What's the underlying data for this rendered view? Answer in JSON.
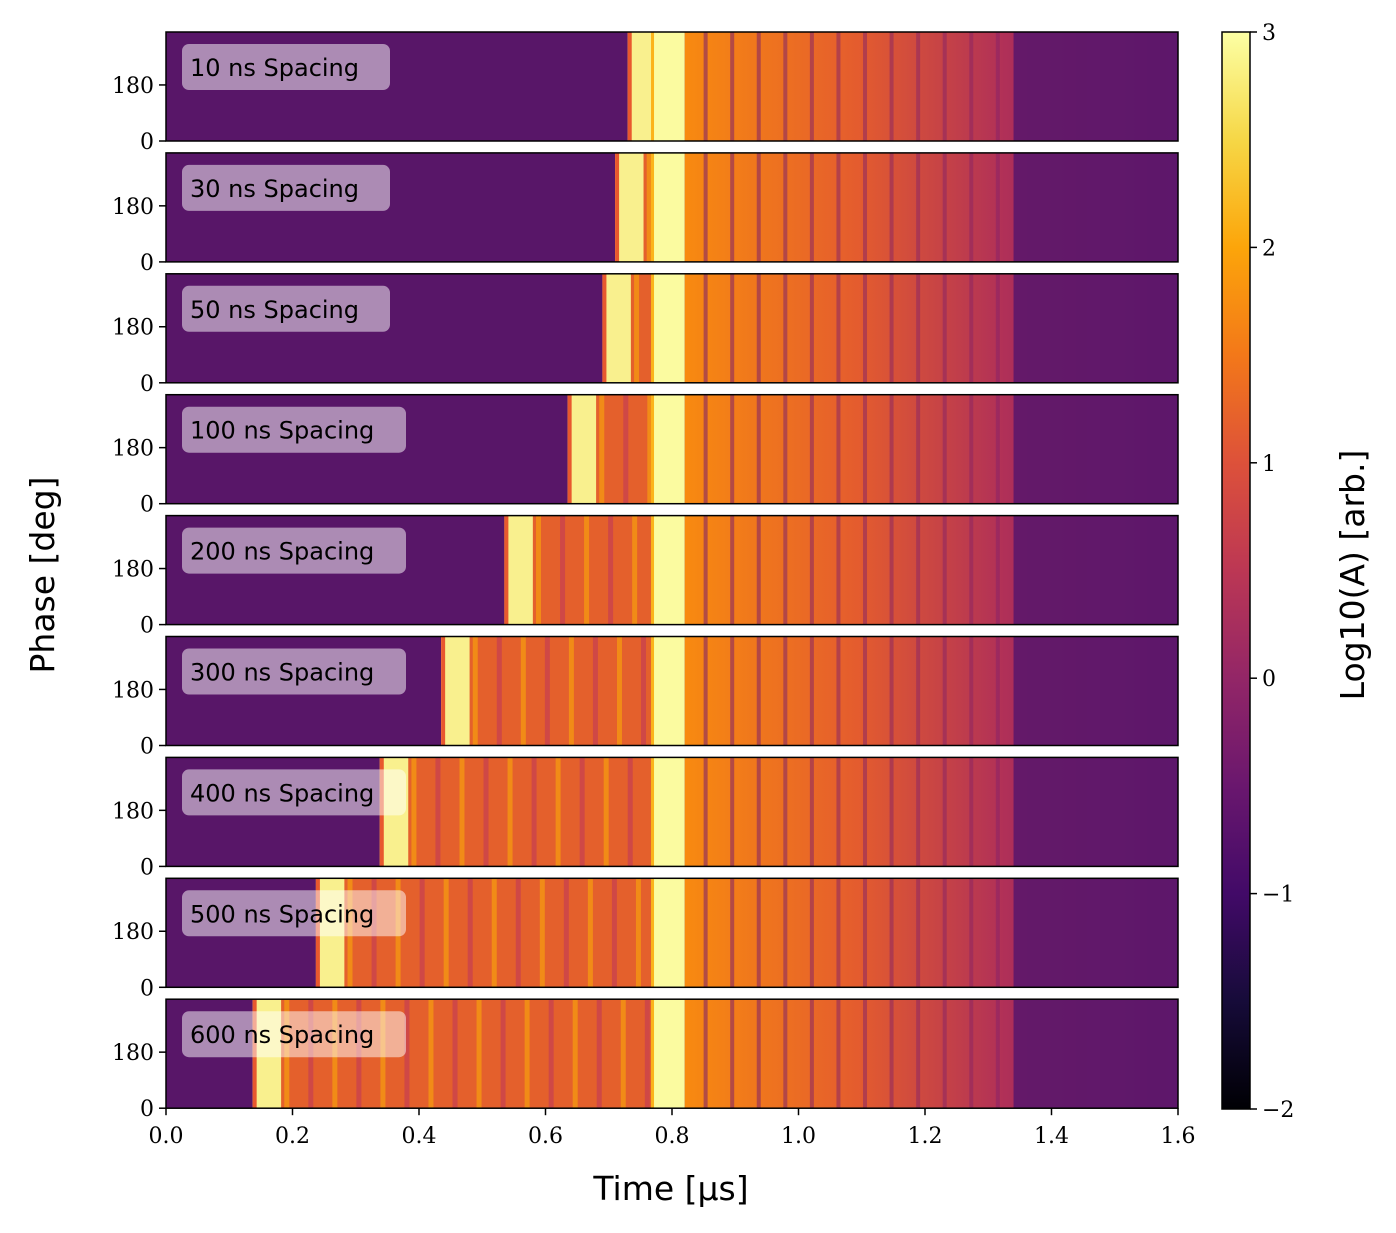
{
  "chart_data": {
    "type": "heatmap",
    "xlabel": "Time [μs]",
    "ylabel": "Phase [deg]",
    "colorbar_label": "Log10(A) [arb.]",
    "colormap": "inferno",
    "xlim": [
      0.0,
      1.6
    ],
    "ylim": [
      0,
      350
    ],
    "x_ticks": [
      "0.0",
      "0.2",
      "0.4",
      "0.6",
      "0.8",
      "1.0",
      "1.2",
      "1.4",
      "1.6"
    ],
    "x_tick_values": [
      0.0,
      0.2,
      0.4,
      0.6,
      0.8,
      1.0,
      1.2,
      1.4,
      1.6
    ],
    "y_ticks": [
      "0",
      "180"
    ],
    "y_tick_values": [
      0,
      180
    ],
    "clim": [
      -2,
      3
    ],
    "colorbar_ticks": [
      "−2",
      "−1",
      "0",
      "1",
      "2",
      "3"
    ],
    "colorbar_tick_values": [
      -2,
      -1,
      0,
      1,
      2,
      3
    ],
    "second_pulse_start_us": 0.77,
    "second_pulse_end_us": 0.82,
    "panels": [
      {
        "label": "10 ns Spacing",
        "spacing_ns": 10,
        "first_pulse_start_us": 0.73
      },
      {
        "label": "30 ns Spacing",
        "spacing_ns": 30,
        "first_pulse_start_us": 0.71
      },
      {
        "label": "50 ns Spacing",
        "spacing_ns": 50,
        "first_pulse_start_us": 0.69
      },
      {
        "label": "100 ns Spacing",
        "spacing_ns": 100,
        "first_pulse_start_us": 0.635
      },
      {
        "label": "200 ns Spacing",
        "spacing_ns": 200,
        "first_pulse_start_us": 0.535
      },
      {
        "label": "300 ns Spacing",
        "spacing_ns": 300,
        "first_pulse_start_us": 0.435
      },
      {
        "label": "400 ns Spacing",
        "spacing_ns": 400,
        "first_pulse_start_us": 0.338
      },
      {
        "label": "500 ns Spacing",
        "spacing_ns": 500,
        "first_pulse_start_us": 0.237
      },
      {
        "label": "600 ns Spacing",
        "spacing_ns": 600,
        "first_pulse_start_us": 0.137
      }
    ]
  }
}
